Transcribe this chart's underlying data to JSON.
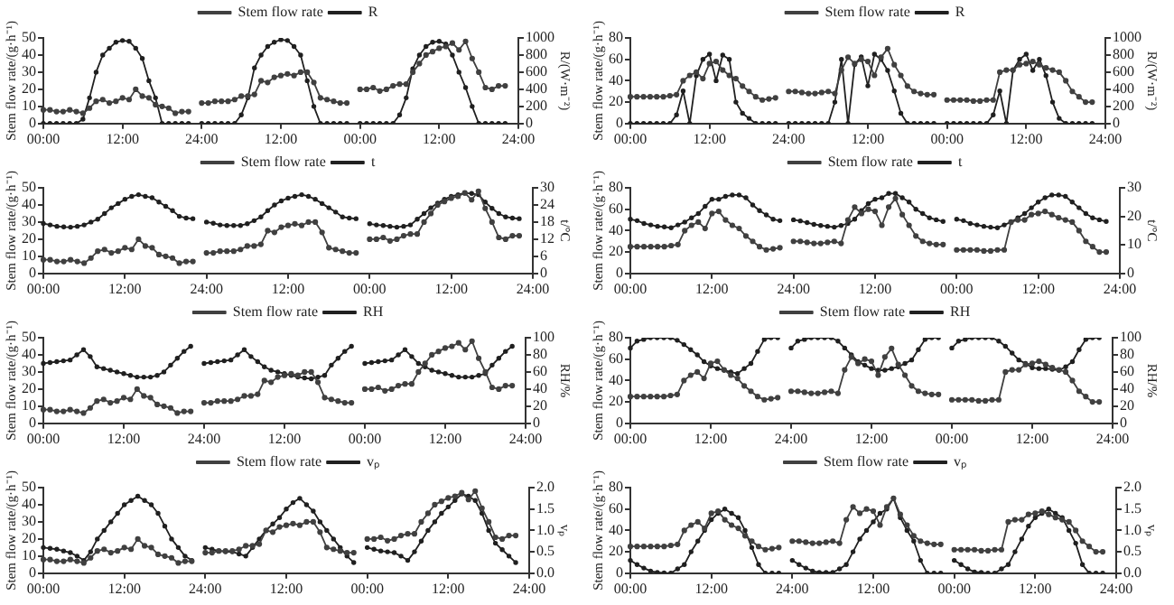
{
  "chart_data": [
    {
      "type": "line",
      "legend": "top",
      "marker": "circle",
      "grid": false,
      "ylabel": "Stem flow rate/(g·h⁻¹)",
      "y2label": "R/(W·m⁻²)",
      "ylim": [
        0,
        50
      ],
      "yticks": [
        0,
        10,
        20,
        30,
        40,
        50
      ],
      "y2lim": [
        0,
        1000
      ],
      "y2ticks": [
        0,
        200,
        400,
        600,
        800,
        1000
      ],
      "categories": [
        "00:00",
        null,
        null,
        null,
        null,
        null,
        null,
        null,
        null,
        null,
        null,
        null,
        "12:00",
        null,
        null,
        null,
        null,
        null,
        null,
        null,
        null,
        null,
        null,
        null,
        "24:00",
        null,
        null,
        null,
        null,
        null,
        null,
        null,
        null,
        null,
        null,
        null,
        "12:00",
        null,
        null,
        null,
        null,
        null,
        null,
        null,
        null,
        null,
        null,
        null,
        "00:00",
        null,
        null,
        null,
        null,
        null,
        null,
        null,
        null,
        null,
        null,
        null,
        "12:00",
        null,
        null,
        null,
        null,
        null,
        null,
        null,
        null,
        null,
        null,
        null,
        "24:00"
      ],
      "series": [
        {
          "name": "Stem flow rate",
          "color": "#404040",
          "values": [
            8,
            8,
            7,
            7,
            8,
            7,
            6,
            9,
            13,
            14,
            12,
            13,
            15,
            14,
            20,
            16,
            15,
            11,
            10,
            9,
            6,
            7,
            7,
            null,
            12,
            12,
            13,
            13,
            13,
            14,
            16,
            16,
            17,
            25,
            24,
            27,
            28,
            29,
            28,
            30,
            30,
            24,
            15,
            14,
            13,
            12,
            12,
            null,
            20,
            20,
            21,
            19,
            20,
            22,
            23,
            23,
            30,
            35,
            40,
            42,
            44,
            45,
            47,
            43,
            48,
            38,
            30,
            21,
            20,
            22,
            22,
            null,
            null
          ]
        },
        {
          "name": "R",
          "color": "#202020",
          "axis": "y2",
          "values": [
            0,
            0,
            0,
            0,
            0,
            0,
            50,
            300,
            600,
            800,
            880,
            950,
            970,
            960,
            880,
            760,
            500,
            300,
            0,
            0,
            0,
            0,
            0,
            null,
            0,
            0,
            0,
            0,
            0,
            0,
            100,
            300,
            650,
            800,
            900,
            950,
            980,
            970,
            900,
            800,
            500,
            200,
            0,
            0,
            0,
            0,
            0,
            null,
            0,
            0,
            0,
            0,
            0,
            0,
            100,
            300,
            640,
            800,
            900,
            950,
            960,
            930,
            800,
            600,
            420,
            200,
            0,
            0,
            0,
            0,
            0,
            null,
            null
          ]
        }
      ]
    },
    {
      "type": "line",
      "legend": "top",
      "marker": "circle",
      "grid": false,
      "ylabel": "Stem flow rate/(g·h⁻¹)",
      "y2label": "R/(W·m⁻²)",
      "ylim": [
        0,
        80
      ],
      "yticks": [
        0,
        20,
        40,
        60,
        80
      ],
      "y2lim": [
        0,
        1000
      ],
      "y2ticks": [
        0,
        200,
        400,
        600,
        800,
        1000
      ],
      "categories": [
        "00:00",
        null,
        null,
        null,
        null,
        null,
        null,
        null,
        null,
        null,
        null,
        null,
        "12:00",
        null,
        null,
        null,
        null,
        null,
        null,
        null,
        null,
        null,
        null,
        null,
        "24:00",
        null,
        null,
        null,
        null,
        null,
        null,
        null,
        null,
        null,
        null,
        null,
        "12:00",
        null,
        null,
        null,
        null,
        null,
        null,
        null,
        null,
        null,
        null,
        null,
        "00:00",
        null,
        null,
        null,
        null,
        null,
        null,
        null,
        null,
        null,
        null,
        null,
        "12:00",
        null,
        null,
        null,
        null,
        null,
        null,
        null,
        null,
        null,
        null,
        null,
        "24:00"
      ],
      "series": [
        {
          "name": "Stem flow rate",
          "color": "#404040",
          "values": [
            25,
            25,
            25,
            25,
            25,
            25,
            26,
            27,
            40,
            45,
            48,
            42,
            56,
            58,
            50,
            45,
            42,
            35,
            30,
            25,
            22,
            23,
            24,
            null,
            30,
            30,
            29,
            28,
            28,
            29,
            30,
            28,
            50,
            62,
            56,
            60,
            58,
            45,
            62,
            70,
            55,
            45,
            35,
            30,
            28,
            27,
            27,
            null,
            22,
            22,
            22,
            22,
            21,
            21,
            22,
            22,
            48,
            50,
            50,
            55,
            56,
            58,
            55,
            52,
            50,
            48,
            40,
            30,
            25,
            20,
            20,
            null,
            null
          ]
        },
        {
          "name": "R",
          "color": "#202020",
          "axis": "y2",
          "values": [
            0,
            0,
            0,
            0,
            0,
            0,
            0,
            100,
            380,
            0,
            560,
            750,
            810,
            500,
            800,
            750,
            250,
            120,
            60,
            0,
            0,
            0,
            0,
            null,
            0,
            0,
            0,
            0,
            0,
            0,
            0,
            250,
            750,
            0,
            690,
            780,
            440,
            810,
            750,
            620,
            380,
            120,
            0,
            0,
            0,
            0,
            0,
            null,
            0,
            0,
            0,
            0,
            0,
            0,
            0,
            100,
            380,
            0,
            620,
            750,
            810,
            620,
            750,
            560,
            250,
            60,
            0,
            0,
            0,
            0,
            0,
            null,
            null
          ]
        }
      ]
    },
    {
      "type": "line",
      "legend": "top",
      "marker": "circle",
      "grid": false,
      "ylabel": "Stem flow rate/(g·h⁻¹)",
      "y2label": "t/°C",
      "ylim": [
        0,
        50
      ],
      "yticks": [
        0,
        10,
        20,
        30,
        40,
        50
      ],
      "y2lim": [
        0,
        30
      ],
      "y2ticks": [
        0,
        6,
        12,
        18,
        24,
        30
      ],
      "categories": [
        "00:00",
        null,
        null,
        null,
        null,
        null,
        null,
        null,
        null,
        null,
        null,
        null,
        "12:00",
        null,
        null,
        null,
        null,
        null,
        null,
        null,
        null,
        null,
        null,
        null,
        "24:00",
        null,
        null,
        null,
        null,
        null,
        null,
        null,
        null,
        null,
        null,
        null,
        "12:00",
        null,
        null,
        null,
        null,
        null,
        null,
        null,
        null,
        null,
        null,
        null,
        "00:00",
        null,
        null,
        null,
        null,
        null,
        null,
        null,
        null,
        null,
        null,
        null,
        "12:00",
        null,
        null,
        null,
        null,
        null,
        null,
        null,
        null,
        null,
        null,
        null,
        "24:00"
      ],
      "series": [
        {
          "name": "Stem flow rate",
          "color": "#404040",
          "values": [
            8,
            8,
            7,
            7,
            8,
            7,
            6,
            9,
            13,
            14,
            12,
            13,
            15,
            14,
            20,
            16,
            15,
            11,
            10,
            9,
            6,
            7,
            7,
            null,
            12,
            12,
            13,
            13,
            13,
            14,
            16,
            16,
            17,
            25,
            24,
            27,
            28,
            29,
            28,
            30,
            30,
            24,
            15,
            14,
            13,
            12,
            12,
            null,
            20,
            20,
            21,
            19,
            20,
            22,
            23,
            23,
            30,
            35,
            40,
            42,
            44,
            45,
            47,
            43,
            48,
            38,
            30,
            21,
            20,
            22,
            22,
            null,
            null
          ]
        },
        {
          "name": "t",
          "color": "#202020",
          "axis": "y2",
          "values": [
            17.5,
            17,
            16.5,
            16.3,
            16.2,
            16.5,
            17,
            18,
            19,
            21,
            23,
            24.5,
            26,
            27,
            27.6,
            27,
            26.5,
            25,
            23.5,
            22,
            20,
            19.4,
            19.2,
            null,
            18,
            17.6,
            17,
            16.8,
            16.8,
            16.8,
            17.4,
            18.5,
            19.8,
            22,
            24,
            25.4,
            26.4,
            27,
            27.6,
            27,
            26,
            24.5,
            23,
            21.5,
            19.8,
            19.4,
            19.2,
            null,
            17.4,
            17,
            16.8,
            16.5,
            16.2,
            16.5,
            17,
            19,
            21,
            23,
            24.6,
            26,
            27,
            27.6,
            28.2,
            28,
            27.6,
            25,
            22.8,
            21,
            19.8,
            19.4,
            19.2,
            null,
            null
          ]
        }
      ]
    },
    {
      "type": "line",
      "legend": "top",
      "marker": "circle",
      "grid": false,
      "ylabel": "Stem flow rate/(g·h⁻¹)",
      "y2label": "t/°C",
      "ylim": [
        0,
        80
      ],
      "yticks": [
        0,
        20,
        40,
        60,
        80
      ],
      "y2lim": [
        0,
        30
      ],
      "y2ticks": [
        0,
        10,
        20,
        30
      ],
      "categories": [
        "00:00",
        null,
        null,
        null,
        null,
        null,
        null,
        null,
        null,
        null,
        null,
        null,
        "12:00",
        null,
        null,
        null,
        null,
        null,
        null,
        null,
        null,
        null,
        null,
        null,
        "24:00",
        null,
        null,
        null,
        null,
        null,
        null,
        null,
        null,
        null,
        null,
        null,
        "12:00",
        null,
        null,
        null,
        null,
        null,
        null,
        null,
        null,
        null,
        null,
        null,
        "00:00",
        null,
        null,
        null,
        null,
        null,
        null,
        null,
        null,
        null,
        null,
        null,
        "12:00",
        null,
        null,
        null,
        null,
        null,
        null,
        null,
        null,
        null,
        null,
        null,
        "24:00"
      ],
      "series": [
        {
          "name": "Stem flow rate",
          "color": "#404040",
          "values": [
            25,
            25,
            25,
            25,
            25,
            25,
            26,
            27,
            40,
            45,
            48,
            42,
            56,
            58,
            50,
            45,
            42,
            35,
            30,
            25,
            22,
            23,
            24,
            null,
            30,
            30,
            29,
            28,
            28,
            29,
            30,
            28,
            50,
            62,
            56,
            60,
            58,
            45,
            62,
            70,
            55,
            45,
            35,
            30,
            28,
            27,
            27,
            null,
            22,
            22,
            22,
            22,
            21,
            21,
            22,
            22,
            48,
            50,
            50,
            55,
            56,
            58,
            55,
            52,
            50,
            48,
            40,
            30,
            25,
            20,
            20,
            null,
            null
          ]
        },
        {
          "name": "t",
          "color": "#202020",
          "axis": "y2",
          "values": [
            19,
            18.5,
            17.5,
            17,
            16.5,
            16.3,
            16,
            17,
            18,
            19.5,
            21,
            23.5,
            26,
            26,
            27,
            27.5,
            27.5,
            26.5,
            24,
            22,
            20.5,
            19,
            18.5,
            null,
            18.8,
            18.4,
            17.8,
            17.2,
            16.8,
            16.5,
            16.2,
            16.8,
            17.5,
            19,
            22,
            24.5,
            26,
            26.5,
            28,
            28,
            26.5,
            25,
            22.5,
            21,
            19.5,
            18.8,
            18.2,
            null,
            19,
            18.5,
            17.5,
            17,
            16.5,
            16.2,
            16,
            17,
            18,
            19.5,
            21,
            23,
            25,
            26.5,
            27.5,
            27.5,
            27,
            25,
            23,
            21,
            19.5,
            18.8,
            18.2,
            null,
            null
          ]
        }
      ]
    },
    {
      "type": "line",
      "legend": "top",
      "marker": "circle",
      "grid": false,
      "ylabel": "Stem flow rate/(g·h⁻¹)",
      "y2label": "RH/%",
      "ylim": [
        0,
        50
      ],
      "yticks": [
        0,
        10,
        20,
        30,
        40,
        50
      ],
      "y2lim": [
        0,
        100
      ],
      "y2ticks": [
        0,
        20,
        40,
        60,
        80,
        100
      ],
      "categories": [
        "00:00",
        null,
        null,
        null,
        null,
        null,
        null,
        null,
        null,
        null,
        null,
        null,
        "12:00",
        null,
        null,
        null,
        null,
        null,
        null,
        null,
        null,
        null,
        null,
        null,
        "24:00",
        null,
        null,
        null,
        null,
        null,
        null,
        null,
        null,
        null,
        null,
        null,
        "12:00",
        null,
        null,
        null,
        null,
        null,
        null,
        null,
        null,
        null,
        null,
        null,
        "00:00",
        null,
        null,
        null,
        null,
        null,
        null,
        null,
        null,
        null,
        null,
        null,
        "12:00",
        null,
        null,
        null,
        null,
        null,
        null,
        null,
        null,
        null,
        null,
        null,
        "24:00"
      ],
      "series": [
        {
          "name": "Stem flow rate",
          "color": "#404040",
          "values": [
            8,
            8,
            7,
            7,
            8,
            7,
            6,
            9,
            13,
            14,
            12,
            13,
            15,
            14,
            20,
            16,
            15,
            11,
            10,
            9,
            6,
            7,
            7,
            null,
            12,
            12,
            13,
            13,
            13,
            14,
            16,
            16,
            17,
            25,
            24,
            27,
            28,
            29,
            28,
            30,
            30,
            24,
            15,
            14,
            13,
            12,
            12,
            null,
            20,
            20,
            21,
            19,
            20,
            22,
            23,
            23,
            30,
            35,
            40,
            42,
            44,
            45,
            47,
            43,
            48,
            38,
            30,
            21,
            20,
            22,
            22,
            null,
            null
          ]
        },
        {
          "name": "RH",
          "color": "#202020",
          "axis": "y2",
          "values": [
            70,
            71,
            72,
            73,
            74,
            80,
            86,
            78,
            66,
            64,
            62,
            60,
            58,
            56,
            54,
            54,
            54,
            56,
            60,
            68,
            76,
            84,
            90,
            null,
            70,
            71,
            72,
            73,
            74,
            80,
            86,
            78,
            72,
            66,
            62,
            60,
            58,
            56,
            54,
            53,
            52,
            54,
            56,
            68,
            76,
            84,
            90,
            null,
            70,
            71,
            72,
            73,
            74,
            80,
            86,
            78,
            70,
            66,
            62,
            60,
            58,
            56,
            54,
            54,
            54,
            56,
            58,
            68,
            76,
            84,
            90,
            null,
            null
          ]
        }
      ]
    },
    {
      "type": "line",
      "legend": "top",
      "marker": "circle",
      "grid": false,
      "ylabel": "Stem flow rate/(g·h⁻¹)",
      "y2label": "RH/%",
      "ylim": [
        0,
        80
      ],
      "yticks": [
        0,
        20,
        40,
        60,
        80
      ],
      "y2lim": [
        0,
        100
      ],
      "y2ticks": [
        0,
        20,
        40,
        60,
        80,
        100
      ],
      "categories": [
        "00:00",
        null,
        null,
        null,
        null,
        null,
        null,
        null,
        null,
        null,
        null,
        null,
        "12:00",
        null,
        null,
        null,
        null,
        null,
        null,
        null,
        null,
        null,
        null,
        null,
        "24:00",
        null,
        null,
        null,
        null,
        null,
        null,
        null,
        null,
        null,
        null,
        null,
        "12:00",
        null,
        null,
        null,
        null,
        null,
        null,
        null,
        null,
        null,
        null,
        null,
        "00:00",
        null,
        null,
        null,
        null,
        null,
        null,
        null,
        null,
        null,
        null,
        null,
        "12:00",
        null,
        null,
        null,
        null,
        null,
        null,
        null,
        null,
        null,
        null,
        null,
        "24:00"
      ],
      "series": [
        {
          "name": "Stem flow rate",
          "color": "#404040",
          "values": [
            25,
            25,
            25,
            25,
            25,
            25,
            26,
            27,
            40,
            45,
            48,
            42,
            56,
            58,
            50,
            45,
            42,
            35,
            30,
            25,
            22,
            23,
            24,
            null,
            30,
            30,
            29,
            28,
            28,
            29,
            30,
            28,
            50,
            62,
            56,
            60,
            58,
            45,
            62,
            70,
            55,
            45,
            35,
            30,
            28,
            27,
            27,
            null,
            22,
            22,
            22,
            22,
            21,
            21,
            22,
            22,
            48,
            50,
            50,
            55,
            56,
            58,
            55,
            52,
            50,
            48,
            40,
            30,
            25,
            20,
            20,
            null,
            null
          ]
        },
        {
          "name": "RH",
          "color": "#202020",
          "axis": "y2",
          "values": [
            88,
            96,
            98,
            100,
            100,
            100,
            100,
            97,
            92,
            86,
            80,
            72,
            67,
            64,
            62,
            60,
            58,
            64,
            70,
            84,
            98,
            100,
            100,
            null,
            88,
            96,
            98,
            100,
            100,
            100,
            100,
            96,
            88,
            80,
            72,
            68,
            64,
            62,
            62,
            64,
            66,
            70,
            74,
            86,
            98,
            100,
            100,
            null,
            88,
            96,
            98,
            100,
            100,
            100,
            100,
            96,
            90,
            82,
            74,
            70,
            65,
            64,
            64,
            63,
            62,
            66,
            72,
            86,
            98,
            100,
            100,
            null,
            null
          ]
        }
      ]
    },
    {
      "type": "line",
      "legend": "top",
      "marker": "circle",
      "grid": false,
      "ylabel": "Stem flow rate/(g·h⁻¹)",
      "y2label": "vₚ",
      "ylim": [
        0,
        50
      ],
      "yticks": [
        0,
        10,
        20,
        30,
        40,
        50
      ],
      "y2lim": [
        0,
        2
      ],
      "y2ticks": [
        {
          "value": 0,
          "label": "0.0"
        },
        {
          "value": 0.5,
          "label": "0.5"
        },
        {
          "value": 1,
          "label": "1.0"
        },
        {
          "value": 1.5,
          "label": "1.5"
        },
        {
          "value": 2,
          "label": "2.0"
        }
      ],
      "categories": [
        "00:00",
        null,
        null,
        null,
        null,
        null,
        null,
        null,
        null,
        null,
        null,
        null,
        "12:00",
        null,
        null,
        null,
        null,
        null,
        null,
        null,
        null,
        null,
        null,
        null,
        "24:00",
        null,
        null,
        null,
        null,
        null,
        null,
        null,
        null,
        null,
        null,
        null,
        "12:00",
        null,
        null,
        null,
        null,
        null,
        null,
        null,
        null,
        null,
        null,
        null,
        "00:00",
        null,
        null,
        null,
        null,
        null,
        null,
        null,
        null,
        null,
        null,
        null,
        "12:00",
        null,
        null,
        null,
        null,
        null,
        null,
        null,
        null,
        null,
        null,
        null,
        "24:00"
      ],
      "series": [
        {
          "name": "Stem flow rate",
          "color": "#404040",
          "values": [
            8,
            8,
            7,
            7,
            8,
            7,
            6,
            9,
            13,
            14,
            12,
            13,
            15,
            14,
            20,
            16,
            15,
            11,
            10,
            9,
            6,
            7,
            7,
            null,
            12,
            12,
            13,
            13,
            13,
            14,
            16,
            16,
            17,
            25,
            24,
            27,
            28,
            29,
            28,
            30,
            30,
            24,
            15,
            14,
            13,
            12,
            12,
            null,
            20,
            20,
            21,
            19,
            20,
            22,
            23,
            23,
            30,
            35,
            40,
            42,
            44,
            45,
            47,
            43,
            48,
            38,
            30,
            21,
            20,
            22,
            22,
            null,
            null
          ]
        },
        {
          "name": "vₚ",
          "color": "#202020",
          "axis": "y2",
          "values": [
            0.6,
            0.58,
            0.56,
            0.52,
            0.48,
            0.4,
            0.3,
            0.5,
            0.8,
            1.0,
            1.2,
            1.4,
            1.6,
            1.7,
            1.8,
            1.7,
            1.6,
            1.4,
            1.1,
            0.8,
            0.6,
            0.4,
            0.3,
            null,
            0.6,
            0.56,
            0.52,
            0.5,
            0.5,
            0.45,
            0.4,
            0.6,
            0.8,
            1.0,
            1.15,
            1.3,
            1.5,
            1.65,
            1.75,
            1.6,
            1.45,
            1.2,
            1.0,
            0.8,
            0.6,
            0.4,
            0.25,
            null,
            0.6,
            0.56,
            0.52,
            0.5,
            0.48,
            0.4,
            0.3,
            0.5,
            0.75,
            1.0,
            1.2,
            1.4,
            1.55,
            1.7,
            1.85,
            1.8,
            1.7,
            1.4,
            1.0,
            0.7,
            0.55,
            0.4,
            0.25,
            null,
            null
          ]
        }
      ]
    },
    {
      "type": "line",
      "legend": "top",
      "marker": "circle",
      "grid": false,
      "ylabel": "Stem flow rate/(g·h⁻¹)",
      "y2label": "vₚ",
      "ylim": [
        0,
        80
      ],
      "yticks": [
        0,
        20,
        40,
        60,
        80
      ],
      "y2lim": [
        0,
        2
      ],
      "y2ticks": [
        {
          "value": 0,
          "label": "0.0"
        },
        {
          "value": 0.5,
          "label": "0.5"
        },
        {
          "value": 1,
          "label": "1.0"
        },
        {
          "value": 1.5,
          "label": "1.5"
        },
        {
          "value": 2,
          "label": "2.0"
        }
      ],
      "categories": [
        "00:00",
        null,
        null,
        null,
        null,
        null,
        null,
        null,
        null,
        null,
        null,
        null,
        "12:00",
        null,
        null,
        null,
        null,
        null,
        null,
        null,
        null,
        null,
        null,
        null,
        "24:00",
        null,
        null,
        null,
        null,
        null,
        null,
        null,
        null,
        null,
        null,
        null,
        "12:00",
        null,
        null,
        null,
        null,
        null,
        null,
        null,
        null,
        null,
        null,
        null,
        "00:00",
        null,
        null,
        null,
        null,
        null,
        null,
        null,
        null,
        null,
        null,
        null,
        "12:00",
        null,
        null,
        null,
        null,
        null,
        null,
        null,
        null,
        null,
        null,
        null,
        "24:00"
      ],
      "series": [
        {
          "name": "Stem flow rate",
          "color": "#404040",
          "values": [
            25,
            25,
            25,
            25,
            25,
            25,
            26,
            27,
            40,
            45,
            48,
            42,
            56,
            58,
            50,
            45,
            42,
            35,
            30,
            25,
            22,
            23,
            24,
            null,
            30,
            30,
            29,
            28,
            28,
            29,
            30,
            28,
            50,
            62,
            56,
            60,
            58,
            45,
            62,
            70,
            55,
            45,
            35,
            30,
            28,
            27,
            27,
            null,
            22,
            22,
            22,
            22,
            21,
            21,
            22,
            22,
            48,
            50,
            50,
            55,
            56,
            58,
            55,
            52,
            50,
            48,
            40,
            30,
            25,
            20,
            20,
            null,
            null
          ]
        },
        {
          "name": "vₚ",
          "color": "#202020",
          "axis": "y2",
          "values": [
            0.3,
            0.2,
            0.12,
            0.05,
            0.02,
            0.01,
            0,
            0.1,
            0.2,
            0.5,
            0.75,
            1.0,
            1.25,
            1.4,
            1.5,
            1.4,
            1.3,
            1.0,
            0.6,
            0.2,
            0,
            0,
            0,
            null,
            0.3,
            0.2,
            0.12,
            0.05,
            0.02,
            0.02,
            0.02,
            0.1,
            0.2,
            0.5,
            0.8,
            1.0,
            1.2,
            1.4,
            1.5,
            1.75,
            1.3,
            1.0,
            0.75,
            0.3,
            0,
            0,
            0,
            null,
            0.3,
            0.2,
            0.1,
            0.03,
            0.02,
            0,
            0,
            0.1,
            0.2,
            0.5,
            0.8,
            1.1,
            1.3,
            1.4,
            1.5,
            1.4,
            1.3,
            1.0,
            0.7,
            0.2,
            0,
            0,
            0,
            null,
            null
          ]
        }
      ]
    }
  ]
}
